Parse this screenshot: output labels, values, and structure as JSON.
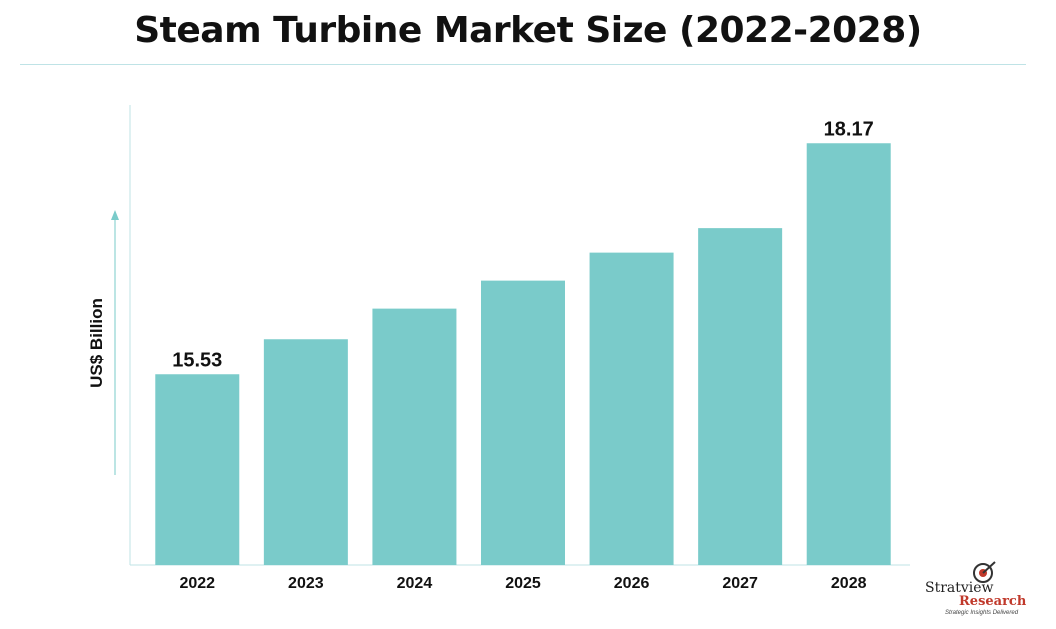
{
  "title": "Steam Turbine Market Size (2022-2028)",
  "logo": {
    "brand": "Stratview",
    "brand2": "Research",
    "tagline": "Strategic Insights Delivered"
  },
  "chart_data": {
    "type": "bar",
    "title": "Steam Turbine Market Size (2022-2028)",
    "ylabel": "US$ Billion",
    "xlabel": "",
    "categories": [
      "2022",
      "2023",
      "2024",
      "2025",
      "2026",
      "2027",
      "2028"
    ],
    "values": [
      15.53,
      15.93,
      16.28,
      16.6,
      16.92,
      17.2,
      18.17
    ],
    "data_labels": {
      "2022": "15.53",
      "2028": "18.17"
    },
    "ylim": [
      13.35,
      18.55
    ],
    "bar_color": "#7acbca",
    "axis_color": "#bfe3e6",
    "grid": false
  }
}
